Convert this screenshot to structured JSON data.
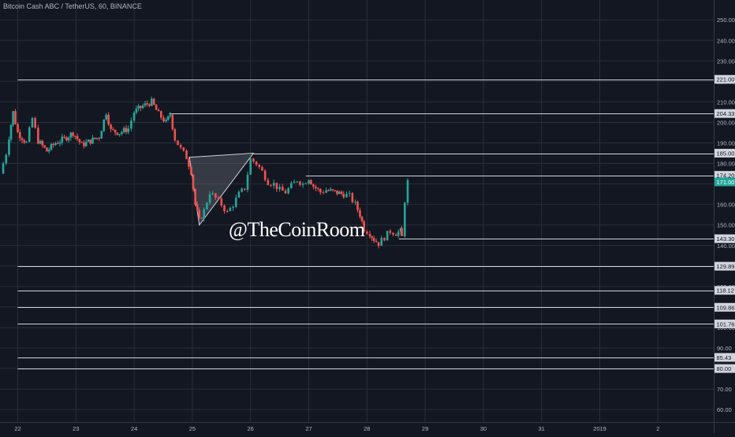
{
  "chart_data": {
    "type": "candlestick",
    "title": "Bitcoin Cash ABC / TetherUS, 60, BINANCE",
    "watermark": "@TheCoinRoom",
    "ylim": [
      55,
      253
    ],
    "y_ticks": [
      60,
      70,
      80,
      90,
      100,
      110,
      120,
      130,
      140,
      150,
      160,
      170,
      180,
      190,
      200,
      210,
      220,
      230,
      240,
      250
    ],
    "y_tick_labels": [
      "60.00",
      "70.00",
      "80.00",
      "90.00",
      "100.00",
      "110.00",
      "120.00",
      "130.00",
      "140.00",
      "150.00",
      "160.00",
      "170.00",
      "180.00",
      "190.00",
      "200.00",
      "210.00",
      "220.00",
      "230.00",
      "240.00",
      "250.00"
    ],
    "x_ticks": [
      "22",
      "23",
      "24",
      "25",
      "26",
      "27",
      "28",
      "29",
      "30",
      "31",
      "2019",
      "2"
    ],
    "grid": true,
    "colors": {
      "background": "#131722",
      "grid": "#2a2e39",
      "up": "#26a69a",
      "down": "#ef5350",
      "level_line": "#d1d4dc",
      "text": "#b2b5be",
      "current_price_label": "#26a69a"
    },
    "current_price": {
      "value": 171.0,
      "label": "171.00"
    },
    "horizontal_levels": [
      {
        "value": 221.0,
        "label": "221.00",
        "start_day": 22
      },
      {
        "value": 204.33,
        "label": "204.33",
        "start_day": 24.6
      },
      {
        "value": 185.0,
        "label": "185.00",
        "start_day": 26.05
      },
      {
        "value": 174.2,
        "label": "174.20",
        "start_day": 26.95
      },
      {
        "value": 143.3,
        "label": "143.30",
        "start_day": 28.55
      },
      {
        "value": 129.89,
        "label": "129.89",
        "start_day": 22
      },
      {
        "value": 118.12,
        "label": "118.12",
        "start_day": 22
      },
      {
        "value": 109.86,
        "label": "109.86",
        "start_day": 22
      },
      {
        "value": 101.76,
        "label": "101.76",
        "start_day": 22
      },
      {
        "value": 85.43,
        "label": "85.43",
        "start_day": 22
      },
      {
        "value": 80.0,
        "label": "80.00",
        "start_day": 22
      }
    ],
    "pattern_triangle": [
      {
        "day": 24.95,
        "price": 183.0
      },
      {
        "day": 26.05,
        "price": 185.0
      },
      {
        "day": 25.12,
        "price": 150.0
      }
    ],
    "price_path": [
      {
        "day": 21.7,
        "close": 175
      },
      {
        "day": 21.8,
        "close": 185
      },
      {
        "day": 21.85,
        "close": 193
      },
      {
        "day": 21.92,
        "close": 205
      },
      {
        "day": 22.0,
        "close": 195
      },
      {
        "day": 22.15,
        "close": 190
      },
      {
        "day": 22.25,
        "close": 202
      },
      {
        "day": 22.35,
        "close": 191
      },
      {
        "day": 22.5,
        "close": 186
      },
      {
        "day": 22.65,
        "close": 190
      },
      {
        "day": 22.8,
        "close": 192
      },
      {
        "day": 22.95,
        "close": 195
      },
      {
        "day": 23.1,
        "close": 189
      },
      {
        "day": 23.25,
        "close": 191
      },
      {
        "day": 23.4,
        "close": 193
      },
      {
        "day": 23.52,
        "close": 205
      },
      {
        "day": 23.6,
        "close": 196
      },
      {
        "day": 23.75,
        "close": 195
      },
      {
        "day": 23.9,
        "close": 197
      },
      {
        "day": 24.0,
        "close": 205
      },
      {
        "day": 24.15,
        "close": 208
      },
      {
        "day": 24.3,
        "close": 210
      },
      {
        "day": 24.42,
        "close": 204
      },
      {
        "day": 24.55,
        "close": 200
      },
      {
        "day": 24.62,
        "close": 204
      },
      {
        "day": 24.7,
        "close": 192
      },
      {
        "day": 24.8,
        "close": 187
      },
      {
        "day": 24.9,
        "close": 183
      },
      {
        "day": 24.98,
        "close": 176
      },
      {
        "day": 25.05,
        "close": 160
      },
      {
        "day": 25.12,
        "close": 152
      },
      {
        "day": 25.2,
        "close": 157
      },
      {
        "day": 25.3,
        "close": 166
      },
      {
        "day": 25.4,
        "close": 163
      },
      {
        "day": 25.5,
        "close": 160
      },
      {
        "day": 25.6,
        "close": 156
      },
      {
        "day": 25.7,
        "close": 160
      },
      {
        "day": 25.8,
        "close": 165
      },
      {
        "day": 25.9,
        "close": 168
      },
      {
        "day": 26.0,
        "close": 182
      },
      {
        "day": 26.1,
        "close": 180
      },
      {
        "day": 26.2,
        "close": 176
      },
      {
        "day": 26.3,
        "close": 171
      },
      {
        "day": 26.4,
        "close": 170
      },
      {
        "day": 26.5,
        "close": 167
      },
      {
        "day": 26.6,
        "close": 166
      },
      {
        "day": 26.7,
        "close": 169
      },
      {
        "day": 26.8,
        "close": 172
      },
      {
        "day": 26.9,
        "close": 170
      },
      {
        "day": 27.0,
        "close": 173
      },
      {
        "day": 27.08,
        "close": 169
      },
      {
        "day": 27.2,
        "close": 166
      },
      {
        "day": 27.3,
        "close": 167
      },
      {
        "day": 27.45,
        "close": 166
      },
      {
        "day": 27.6,
        "close": 165
      },
      {
        "day": 27.7,
        "close": 164
      },
      {
        "day": 27.8,
        "close": 160
      },
      {
        "day": 27.88,
        "close": 155
      },
      {
        "day": 27.95,
        "close": 148
      },
      {
        "day": 28.05,
        "close": 146
      },
      {
        "day": 28.12,
        "close": 143
      },
      {
        "day": 28.2,
        "close": 141
      },
      {
        "day": 28.3,
        "close": 144
      },
      {
        "day": 28.4,
        "close": 147
      },
      {
        "day": 28.5,
        "close": 146
      },
      {
        "day": 28.58,
        "close": 147
      },
      {
        "day": 28.6,
        "close": 144
      },
      {
        "day": 28.65,
        "close": 162
      },
      {
        "day": 28.7,
        "close": 171
      }
    ]
  }
}
